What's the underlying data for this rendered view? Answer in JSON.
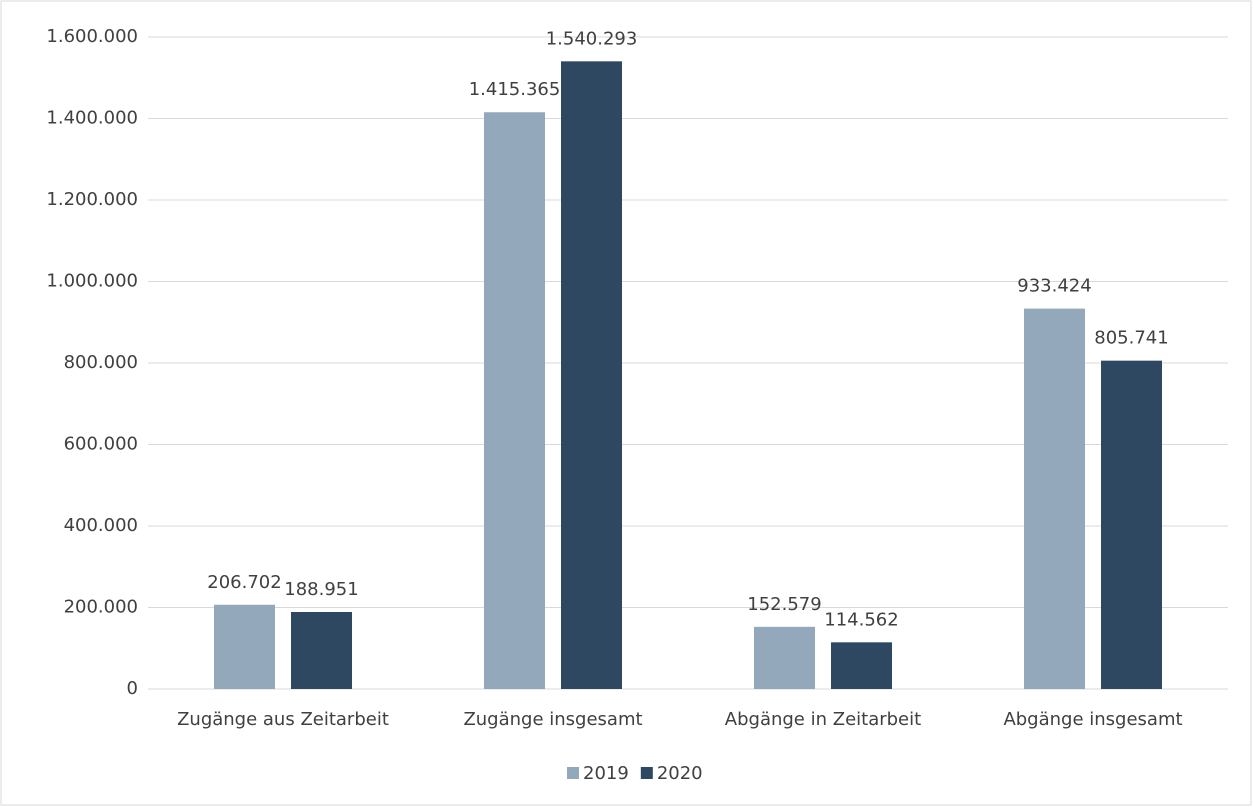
{
  "chart_data": {
    "type": "bar",
    "categories": [
      "Zugänge aus Zeitarbeit",
      "Zugänge insgesamt",
      "Abgänge in Zeitarbeit",
      "Abgänge insgesamt"
    ],
    "series": [
      {
        "name": "2019",
        "color": "#94a8bc",
        "values": [
          206702,
          1415365,
          152579,
          933424
        ],
        "value_labels": [
          "206.702",
          "1.415.365",
          "152.579",
          "933.424"
        ]
      },
      {
        "name": "2020",
        "color": "#2e4862",
        "values": [
          188951,
          1540293,
          114562,
          805741
        ],
        "value_labels": [
          "188.951",
          "1.540.293",
          "114.562",
          "805.741"
        ]
      }
    ],
    "ylim": [
      0,
      1600000
    ],
    "yticks": [
      0,
      {
        "value": 200000,
        "label": "200.000"
      },
      {
        "value": 400000,
        "label": "400.000"
      },
      {
        "value": 600000,
        "label": "600.000"
      },
      {
        "value": 800000,
        "label": "800.000"
      },
      {
        "value": 1000000,
        "label": "1.000.000"
      },
      {
        "value": 1200000,
        "label": "1.200.000"
      },
      {
        "value": 1400000,
        "label": "1.400.000"
      },
      {
        "value": 1600000,
        "label": "1.600.000"
      }
    ],
    "grid": true,
    "legend": "bottom"
  }
}
